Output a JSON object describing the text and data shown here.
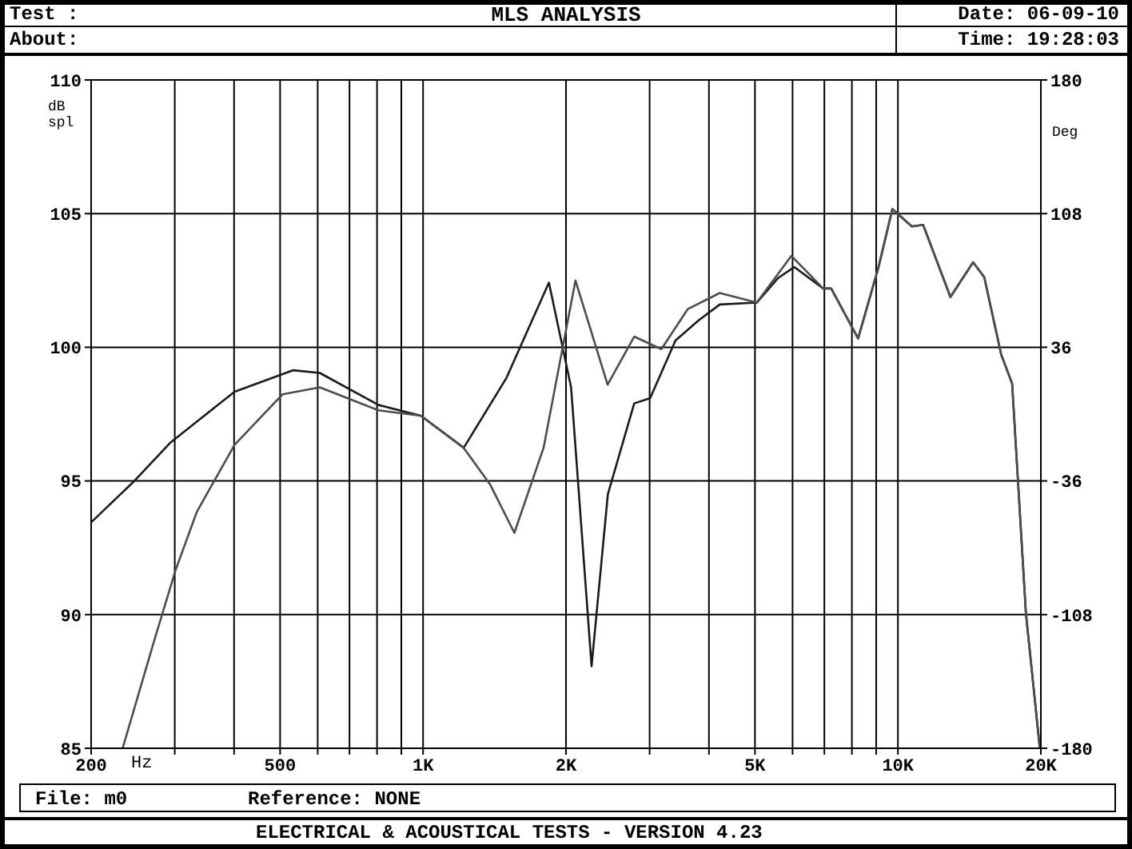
{
  "chart_data": {
    "type": "line",
    "title": "MLS ANALYSIS",
    "xlabel": "Hz",
    "ylabel": "dB spl",
    "y2label": "Deg",
    "annotations": [
      "Test :",
      "About:",
      "Date: 06-09-10",
      "Time: 19:28:03",
      "File: m0",
      "Reference: NONE",
      "ELECTRICAL & ACOUSTICAL TESTS - VERSION 4.23"
    ],
    "series": [
      {
        "color": "#1a1a1a",
        "x": [
          200,
          245,
          294,
          401,
          532,
          606,
          806,
          989,
          1218,
          1497,
          1841,
          2050,
          2264,
          2450,
          2784,
          3008,
          3400,
          3800,
          4215,
          5044,
          5600,
          6050,
          6960,
          7236,
          8245,
          9110,
          9735,
          10700,
          11300,
          12900,
          14400,
          15200,
          16500,
          17400,
          18600,
          19900
        ],
        "values": [
          93.45,
          94.95,
          96.44,
          98.34,
          99.14,
          99.04,
          97.84,
          97.44,
          96.24,
          98.84,
          102.42,
          98.5,
          88.07,
          94.5,
          97.9,
          98.1,
          100.25,
          101.0,
          101.6,
          101.67,
          102.6,
          103.0,
          102.2,
          102.2,
          100.33,
          103.02,
          105.17,
          104.52,
          104.58,
          101.88,
          103.18,
          102.62,
          99.73,
          98.64,
          90.06,
          85
        ]
      },
      {
        "color": "#4d4d4d",
        "x": [
          233,
          272,
          301,
          334,
          401,
          506,
          606,
          806,
          989,
          1218,
          1386,
          1557,
          1794,
          2094,
          2447,
          2784,
          3176,
          3610,
          4215,
          5044,
          5966,
          6960,
          7236,
          8245,
          9110,
          9735,
          10700,
          11300,
          12900,
          14400,
          15200,
          16500,
          17400,
          18600,
          19900
        ],
        "values": [
          85,
          89.07,
          91.65,
          93.85,
          96.35,
          98.24,
          98.5,
          97.64,
          97.44,
          96.24,
          94.85,
          93.06,
          96.24,
          102.5,
          98.6,
          100.4,
          99.93,
          101.43,
          102.03,
          101.67,
          103.42,
          102.2,
          102.2,
          100.33,
          103.02,
          105.17,
          104.52,
          104.58,
          101.88,
          103.18,
          102.62,
          99.73,
          98.64,
          90.06,
          85
        ]
      }
    ],
    "log": "x",
    "xlim": [
      200,
      20000
    ],
    "xticks": [
      200,
      {
        "value": 300,
        "label": null
      },
      {
        "value": 400,
        "label": null
      },
      500,
      {
        "value": 600,
        "label": null
      },
      {
        "value": 700,
        "label": null
      },
      {
        "value": 800,
        "label": null
      },
      {
        "value": 900,
        "label": null
      },
      {
        "value": 1000,
        "label": "1K"
      },
      {
        "value": 2000,
        "label": "2K"
      },
      {
        "value": 3000,
        "label": null
      },
      {
        "value": 4000,
        "label": null
      },
      {
        "value": 5000,
        "label": "5K"
      },
      {
        "value": 6000,
        "label": null
      },
      {
        "value": 7000,
        "label": null
      },
      {
        "value": 8000,
        "label": null
      },
      {
        "value": 9000,
        "label": null
      },
      {
        "value": 10000,
        "label": "10K"
      },
      {
        "value": 20000,
        "label": "20K"
      }
    ],
    "ylim": [
      85,
      110
    ],
    "yticks": [
      85,
      90,
      95,
      100,
      105,
      110
    ],
    "y2lim": [
      -180,
      180
    ],
    "y2ticks": [
      -180,
      -108,
      -36,
      36,
      108,
      180
    ],
    "grid": true,
    "line_style": "solid",
    "marker": "none"
  }
}
